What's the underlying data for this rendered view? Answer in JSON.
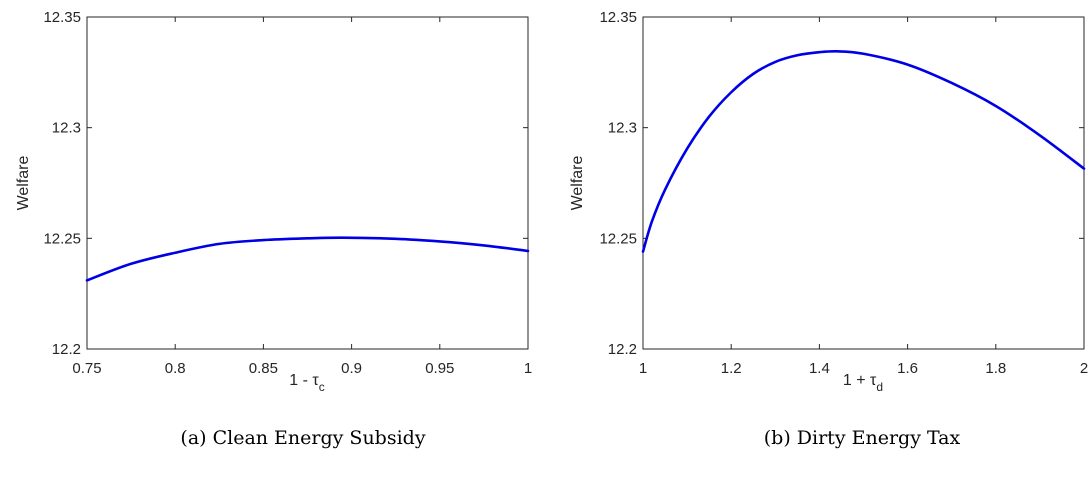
{
  "chart_data": [
    {
      "type": "line",
      "caption": "(a) Clean Energy Subsidy",
      "xlabel_main": "1 - τ",
      "xlabel_sub": "c",
      "ylabel": "Welfare",
      "xlim": [
        0.75,
        1.0
      ],
      "ylim": [
        12.2,
        12.35
      ],
      "xticks": [
        0.75,
        0.8,
        0.85,
        0.9,
        0.95,
        1
      ],
      "xtick_labels": [
        "0.75",
        "0.8",
        "0.85",
        "0.9",
        "0.95",
        "1"
      ],
      "yticks": [
        12.2,
        12.25,
        12.3,
        12.35
      ],
      "ytick_labels": [
        "12.2",
        "12.25",
        "12.3",
        "12.35"
      ],
      "grid": false,
      "line_color": "#0000e6",
      "series": [
        {
          "x": [
            0.75,
            0.775,
            0.8,
            0.825,
            0.85,
            0.875,
            0.895,
            0.925,
            0.95,
            0.975,
            1.0
          ],
          "y": [
            12.231,
            12.2385,
            12.2435,
            12.2475,
            12.2492,
            12.25,
            12.2503,
            12.2498,
            12.2486,
            12.2468,
            12.2443
          ]
        }
      ]
    },
    {
      "type": "line",
      "caption": "(b) Dirty Energy Tax",
      "xlabel_main": "1 + τ",
      "xlabel_sub": "d",
      "ylabel": "Welfare",
      "xlim": [
        1.0,
        2.0
      ],
      "ylim": [
        12.2,
        12.35
      ],
      "xticks": [
        1,
        1.2,
        1.4,
        1.6,
        1.8,
        2
      ],
      "xtick_labels": [
        "1",
        "1.2",
        "1.4",
        "1.6",
        "1.8",
        "2"
      ],
      "yticks": [
        12.2,
        12.25,
        12.3,
        12.35
      ],
      "ytick_labels": [
        "12.2",
        "12.25",
        "12.3",
        "12.35"
      ],
      "grid": false,
      "line_color": "#0000e6",
      "series": [
        {
          "x": [
            1.0,
            1.02,
            1.05,
            1.1,
            1.15,
            1.2,
            1.25,
            1.3,
            1.35,
            1.4,
            1.44,
            1.5,
            1.6,
            1.7,
            1.8,
            1.9,
            2.0
          ],
          "y": [
            12.244,
            12.2575,
            12.272,
            12.2905,
            12.305,
            12.316,
            12.3243,
            12.3297,
            12.3327,
            12.3341,
            12.3345,
            12.3334,
            12.3285,
            12.3202,
            12.3098,
            12.2965,
            12.2815
          ]
        }
      ]
    }
  ]
}
